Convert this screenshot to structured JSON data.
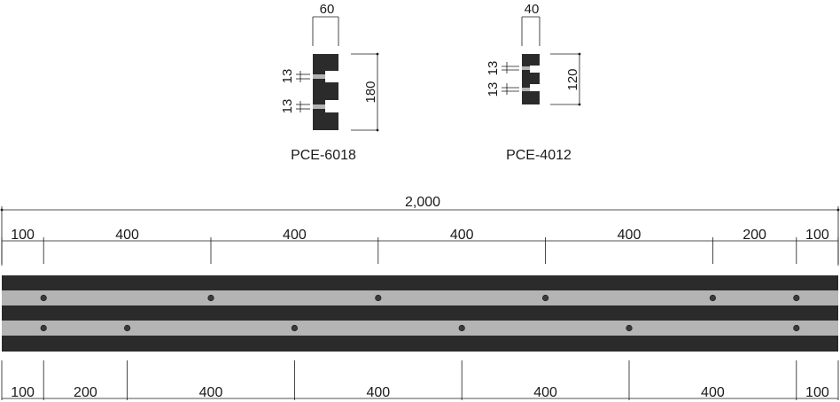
{
  "profiles": [
    {
      "name": "PCE-6018",
      "width_label": "60",
      "height_label": "180",
      "slot_labels": [
        "13",
        "13"
      ]
    },
    {
      "name": "PCE-4012",
      "width_label": "40",
      "height_label": "120",
      "slot_labels": [
        "13",
        "13"
      ]
    }
  ],
  "rail": {
    "total_length_label": "2,000",
    "top_spacing": [
      "100",
      "400",
      "400",
      "400",
      "400",
      "200",
      "100"
    ],
    "bottom_spacing": [
      "100",
      "200",
      "400",
      "400",
      "400",
      "400",
      "100"
    ],
    "top_spacing_values": [
      100,
      400,
      400,
      400,
      400,
      200,
      100
    ],
    "bottom_spacing_values": [
      100,
      200,
      400,
      400,
      400,
      400,
      100
    ],
    "total_length": 2000
  },
  "colors": {
    "profile_dark": "#2b2b2b",
    "insert_gray": "#b4b4b4",
    "line": "#1a1a1a"
  }
}
